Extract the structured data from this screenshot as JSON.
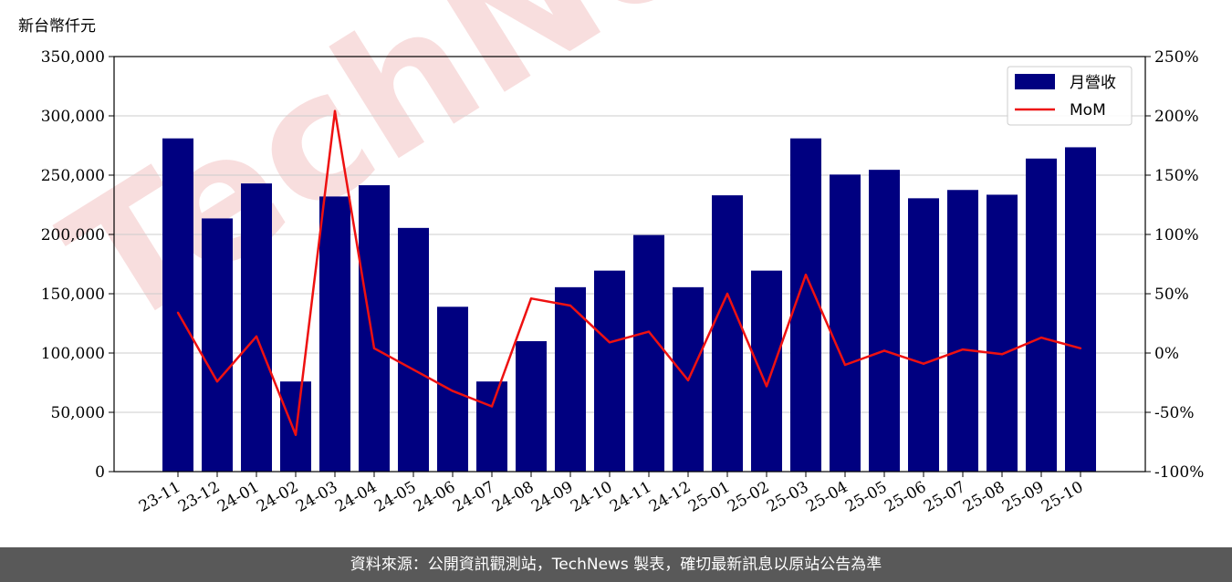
{
  "unit_label": "新台幣仟元",
  "footer": "資料來源：公開資訊觀測站，TechNews 製表，確切最新訊息以原站公告為準",
  "watermark": "TechNews",
  "colors": {
    "bar": "#000080",
    "line": "#ee1111",
    "footer_bg": "#595959",
    "watermark": "#f8dede"
  },
  "chart_data": {
    "type": "bar",
    "categories": [
      "23-11",
      "23-12",
      "24-01",
      "24-02",
      "24-03",
      "24-04",
      "24-05",
      "24-06",
      "24-07",
      "24-08",
      "24-09",
      "24-10",
      "24-11",
      "24-12",
      "25-01",
      "25-02",
      "25-03",
      "25-04",
      "25-05",
      "25-06",
      "25-07",
      "25-08",
      "25-09",
      "25-10"
    ],
    "series": [
      {
        "name": "月營收",
        "type": "bar",
        "axis": "left",
        "values": [
          281000,
          213500,
          243000,
          76000,
          232000,
          241500,
          205500,
          139000,
          76000,
          110000,
          155500,
          169500,
          199500,
          155500,
          233000,
          169500,
          281000,
          250500,
          254500,
          230500,
          237500,
          233500,
          264000,
          273500
        ]
      },
      {
        "name": "MoM",
        "type": "line",
        "axis": "right",
        "values": [
          34,
          -24,
          14,
          -69,
          204,
          4,
          -14,
          -32,
          -45,
          46,
          40,
          9,
          18,
          -23,
          50,
          -28,
          66,
          -10,
          2,
          -9,
          3,
          -1,
          13,
          4
        ]
      }
    ],
    "y_left": {
      "min": 0,
      "max": 350000,
      "step": 50000
    },
    "y_right": {
      "min": -100,
      "max": 250,
      "step": 50,
      "format": "percent"
    },
    "grid": "horizontal",
    "legend": "top-right"
  }
}
